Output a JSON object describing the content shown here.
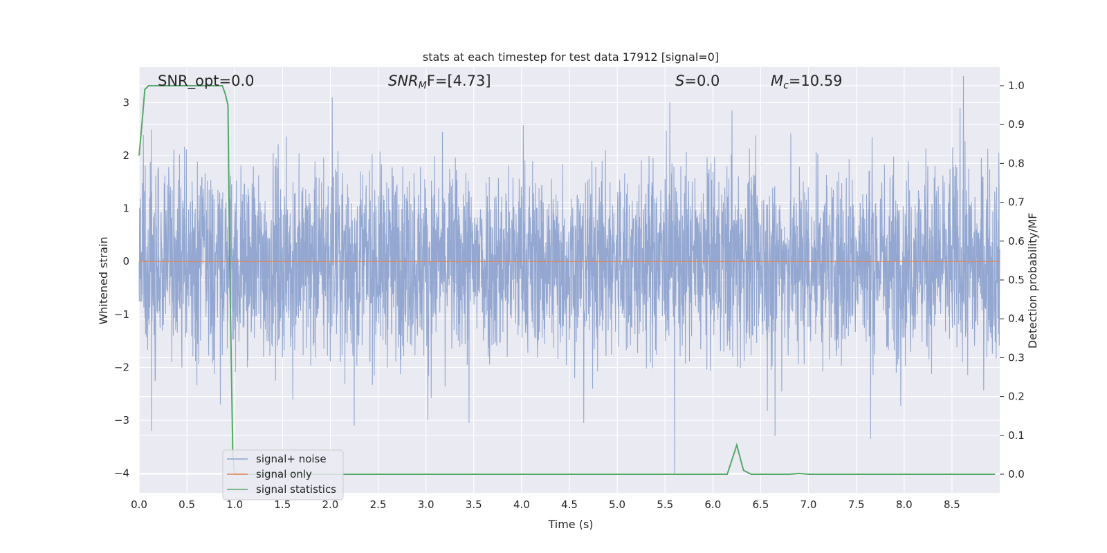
{
  "chart_data": {
    "type": "line",
    "title": "stats at each timestep for test data 17912 [signal=0]",
    "xlabel": "Time (s)",
    "ylabel": "Whitened strain",
    "y2label": "Detection probability/MF",
    "xlim": [
      0,
      9.0
    ],
    "ylim": [
      -4.37,
      3.67
    ],
    "y2lim": [
      -0.048,
      1.048
    ],
    "xticks": [
      "0.0",
      "0.5",
      "1.0",
      "1.5",
      "2.0",
      "2.5",
      "3.0",
      "3.5",
      "4.0",
      "4.5",
      "5.0",
      "5.5",
      "6.0",
      "6.5",
      "7.0",
      "7.5",
      "8.0",
      "8.5"
    ],
    "yticks": [
      "3",
      "2",
      "1",
      "0",
      "−1",
      "−2",
      "−3",
      "−4"
    ],
    "y2ticks": [
      "1.0",
      "0.9",
      "0.8",
      "0.7",
      "0.6",
      "0.5",
      "0.4",
      "0.3",
      "0.2",
      "0.1",
      "0.0"
    ],
    "grid": true,
    "legend_position": "lower-left",
    "annotations": {
      "snr_opt": "SNR_opt=0.0",
      "snr_mf_main": "SNR",
      "snr_mf_sub": "M",
      "snr_mf_rest": "F=[4.73]",
      "s_main": "S",
      "s_rest": "=0.0",
      "mc_main": "M",
      "mc_sub": "c",
      "mc_rest": "=10.59"
    },
    "series": [
      {
        "name": "signal+ noise",
        "color": "#8ea3cf",
        "description": "whitened strain noise, roughly within ±2 with spikes to about ±3.5",
        "peaks": [
          {
            "x": 0.13,
            "y": -3.2
          },
          {
            "x": 0.85,
            "y": -2.7
          },
          {
            "x": 2.02,
            "y": 3.1
          },
          {
            "x": 2.25,
            "y": -3.1
          },
          {
            "x": 3.02,
            "y": -3.0
          },
          {
            "x": 3.45,
            "y": -3.05
          },
          {
            "x": 4.65,
            "y": -3.05
          },
          {
            "x": 5.55,
            "y": 3.0
          },
          {
            "x": 5.6,
            "y": -4.0
          },
          {
            "x": 6.2,
            "y": 2.85
          },
          {
            "x": 6.65,
            "y": -3.3
          },
          {
            "x": 7.65,
            "y": -3.35
          },
          {
            "x": 8.62,
            "y": 3.5
          }
        ]
      },
      {
        "name": "signal only",
        "color": "#dd8452",
        "x": [
          0,
          9.0
        ],
        "y": [
          0,
          0
        ]
      },
      {
        "name": "signal statistics",
        "color": "#55a868",
        "axis": "right",
        "x": [
          0,
          0.03,
          0.06,
          0.1,
          0.15,
          0.3,
          0.5,
          0.7,
          0.87,
          0.9,
          0.93,
          0.95,
          0.98,
          1.0,
          1.2,
          2.0,
          3.0,
          4.0,
          5.0,
          6.0,
          6.15,
          6.25,
          6.32,
          6.4,
          6.8,
          6.9,
          7.0,
          8.0,
          8.95
        ],
        "y": [
          0.82,
          0.9,
          0.99,
          1.0,
          1.0,
          1.0,
          1.0,
          1.0,
          1.0,
          0.98,
          0.95,
          0.5,
          0.05,
          0.0,
          0.0,
          0.0,
          0.0,
          0.0,
          0.0,
          0.0,
          0.0,
          0.075,
          0.01,
          0.0,
          0.0,
          0.002,
          0.0,
          0.0,
          0.0
        ]
      }
    ]
  }
}
